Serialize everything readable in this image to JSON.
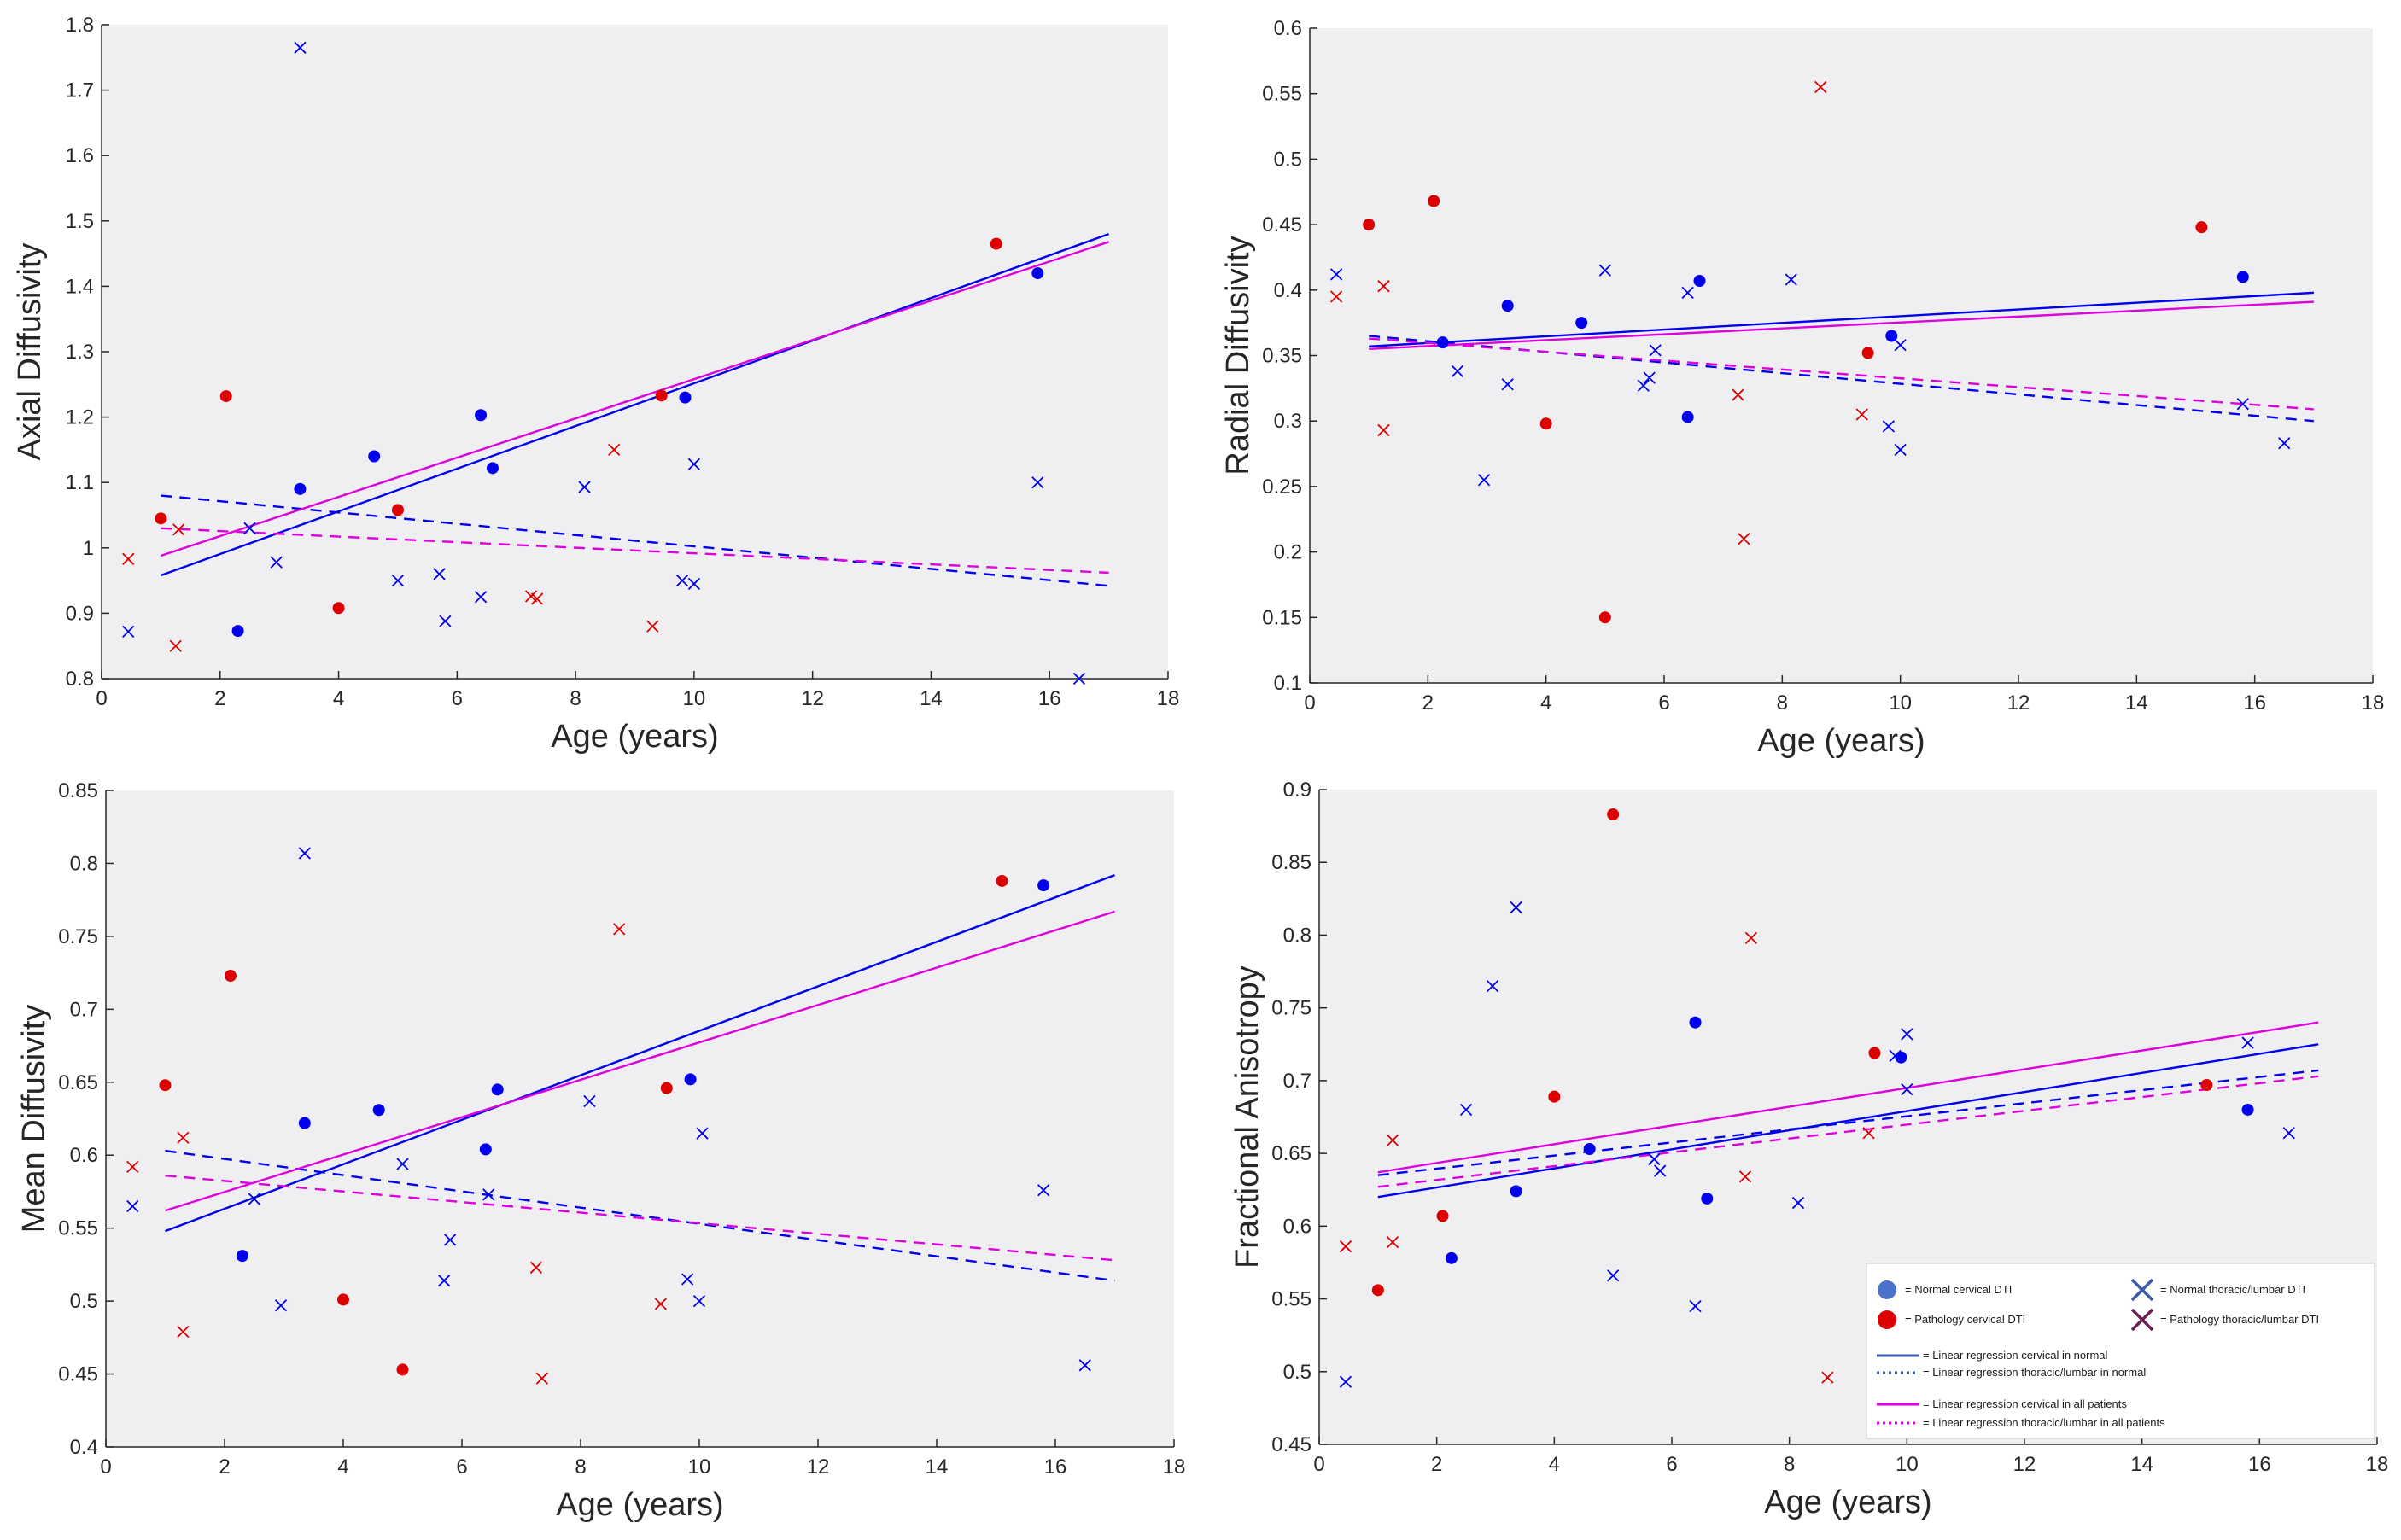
{
  "colors": {
    "normal": "#0000ee",
    "pathology": "#dd0000",
    "regression_all": "#dd00dd",
    "plot_bg": "#efeff2"
  },
  "chart_data": [
    {
      "type": "scatter",
      "ylabel": "Axial Diffusivity",
      "xlabel": "Age (years)",
      "xlim": [
        0,
        18
      ],
      "ylim": [
        0.8,
        1.8
      ],
      "xticks": [
        "0",
        "2",
        "4",
        "6",
        "8",
        "10",
        "12",
        "14",
        "16",
        "18"
      ],
      "yticks": [
        "0.8",
        "0.9",
        "1",
        "1.1",
        "1.2",
        "1.3",
        "1.4",
        "1.5",
        "1.6",
        "1.7",
        "1.8"
      ],
      "series": [
        {
          "name": "Normal cervical DTI",
          "marker": "dot",
          "color": "normal",
          "x": [
            2.3,
            3.35,
            4.6,
            6.4,
            6.6,
            9.85,
            15.8
          ],
          "y": [
            0.873,
            1.09,
            1.14,
            1.203,
            1.122,
            1.23,
            1.42
          ]
        },
        {
          "name": "Pathology cervical DTI",
          "marker": "dot",
          "color": "pathology",
          "x": [
            1.0,
            2.1,
            4.0,
            5.0,
            9.45,
            15.1
          ],
          "y": [
            1.045,
            1.232,
            0.908,
            1.058,
            1.233,
            1.465
          ]
        },
        {
          "name": "Normal thoracic/lumbar DTI",
          "marker": "x",
          "color": "normal",
          "x": [
            0.45,
            2.5,
            2.95,
            3.35,
            5.0,
            5.7,
            5.8,
            6.4,
            8.15,
            9.8,
            10.0,
            10.0,
            15.8,
            16.5
          ],
          "y": [
            0.872,
            1.03,
            0.978,
            1.765,
            0.95,
            0.96,
            0.888,
            0.925,
            1.093,
            0.95,
            0.945,
            1.128,
            1.1,
            0.8
          ]
        },
        {
          "name": "Pathology thoracic/lumbar DTI",
          "marker": "x",
          "color": "pathology",
          "x": [
            0.45,
            1.3,
            1.25,
            7.25,
            7.35,
            8.65,
            9.3
          ],
          "y": [
            0.983,
            1.028,
            0.85,
            0.926,
            0.922,
            1.15,
            0.88
          ]
        }
      ],
      "regressions": [
        {
          "name": "Linear regression cervical in normal",
          "color": "normal",
          "dash": false,
          "x": [
            1,
            17
          ],
          "y": [
            0.958,
            1.48
          ]
        },
        {
          "name": "Linear regression thoracic/lumbar in normal",
          "color": "normal",
          "dash": true,
          "x": [
            1,
            17
          ],
          "y": [
            1.08,
            0.942
          ]
        },
        {
          "name": "Linear regression cervical in all patients",
          "color": "regression_all",
          "dash": false,
          "x": [
            1,
            17
          ],
          "y": [
            0.988,
            1.468
          ]
        },
        {
          "name": "Linear regression thoracic/lumbar in all patients",
          "color": "regression_all",
          "dash": true,
          "x": [
            1,
            17
          ],
          "y": [
            1.03,
            0.962
          ]
        }
      ]
    },
    {
      "type": "scatter",
      "ylabel": "Radial Diffusivity",
      "xlabel": "Age (years)",
      "xlim": [
        0,
        18
      ],
      "ylim": [
        0.1,
        0.6
      ],
      "xticks": [
        "0",
        "2",
        "4",
        "6",
        "8",
        "10",
        "12",
        "14",
        "16",
        "18"
      ],
      "yticks": [
        "0.1",
        "0.15",
        "0.2",
        "0.25",
        "0.3",
        "0.35",
        "0.4",
        "0.45",
        "0.5",
        "0.55",
        "0.6"
      ],
      "series": [
        {
          "name": "Normal cervical DTI",
          "marker": "dot",
          "color": "normal",
          "x": [
            2.25,
            3.35,
            4.6,
            6.4,
            6.6,
            9.85,
            15.8
          ],
          "y": [
            0.36,
            0.388,
            0.375,
            0.303,
            0.407,
            0.365,
            0.41
          ]
        },
        {
          "name": "Pathology cervical DTI",
          "marker": "dot",
          "color": "pathology",
          "x": [
            1.0,
            2.1,
            4.0,
            5.0,
            9.45,
            15.1
          ],
          "y": [
            0.45,
            0.468,
            0.298,
            0.15,
            0.352,
            0.448
          ]
        },
        {
          "name": "Normal thoracic/lumbar DTI",
          "marker": "x",
          "color": "normal",
          "x": [
            0.45,
            2.5,
            2.95,
            3.35,
            5.0,
            5.65,
            5.75,
            5.85,
            6.4,
            8.15,
            9.8,
            10.0,
            10.0,
            15.8,
            16.5
          ],
          "y": [
            0.412,
            0.338,
            0.255,
            0.328,
            0.415,
            0.327,
            0.333,
            0.354,
            0.398,
            0.408,
            0.296,
            0.358,
            0.278,
            0.313,
            0.283
          ]
        },
        {
          "name": "Pathology thoracic/lumbar DTI",
          "marker": "x",
          "color": "pathology",
          "x": [
            0.45,
            1.25,
            1.25,
            7.25,
            7.35,
            8.65,
            9.35
          ],
          "y": [
            0.395,
            0.403,
            0.293,
            0.32,
            0.21,
            0.555,
            0.305
          ]
        }
      ],
      "regressions": [
        {
          "name": "Linear regression cervical in normal",
          "color": "normal",
          "dash": false,
          "x": [
            1,
            17
          ],
          "y": [
            0.357,
            0.398
          ]
        },
        {
          "name": "Linear regression thoracic/lumbar in normal",
          "color": "normal",
          "dash": true,
          "x": [
            1,
            17
          ],
          "y": [
            0.365,
            0.3
          ]
        },
        {
          "name": "Linear regression cervical in all patients",
          "color": "regression_all",
          "dash": false,
          "x": [
            1,
            17
          ],
          "y": [
            0.355,
            0.391
          ]
        },
        {
          "name": "Linear regression thoracic/lumbar in all patients",
          "color": "regression_all",
          "dash": true,
          "x": [
            1,
            17
          ],
          "y": [
            0.363,
            0.309
          ]
        }
      ]
    },
    {
      "type": "scatter",
      "ylabel": "Mean Diffusivity",
      "xlabel": "Age (years)",
      "xlim": [
        0,
        18
      ],
      "ylim": [
        0.4,
        0.85
      ],
      "xticks": [
        "0",
        "2",
        "4",
        "6",
        "8",
        "10",
        "12",
        "14",
        "16",
        "18"
      ],
      "yticks": [
        "0.4",
        "0.45",
        "0.5",
        "0.55",
        "0.6",
        "0.65",
        "0.7",
        "0.75",
        "0.8",
        "0.85"
      ],
      "series": [
        {
          "name": "Normal cervical DTI",
          "marker": "dot",
          "color": "normal",
          "x": [
            2.3,
            3.35,
            4.6,
            6.4,
            6.6,
            9.85,
            15.8
          ],
          "y": [
            0.531,
            0.622,
            0.631,
            0.604,
            0.645,
            0.652,
            0.785
          ]
        },
        {
          "name": "Pathology cervical DTI",
          "marker": "dot",
          "color": "pathology",
          "x": [
            1.0,
            2.1,
            4.0,
            5.0,
            9.45,
            15.1
          ],
          "y": [
            0.648,
            0.723,
            0.501,
            0.453,
            0.646,
            0.788
          ]
        },
        {
          "name": "Normal thoracic/lumbar DTI",
          "marker": "x",
          "color": "normal",
          "x": [
            0.45,
            2.5,
            2.95,
            3.35,
            5.0,
            5.7,
            5.8,
            6.45,
            8.15,
            9.8,
            10.0,
            10.05,
            15.8,
            16.5
          ],
          "y": [
            0.565,
            0.57,
            0.497,
            0.807,
            0.594,
            0.514,
            0.542,
            0.573,
            0.637,
            0.515,
            0.5,
            0.615,
            0.576,
            0.456
          ]
        },
        {
          "name": "Pathology thoracic/lumbar DTI",
          "marker": "x",
          "color": "pathology",
          "x": [
            0.45,
            1.3,
            1.3,
            7.25,
            7.35,
            8.65,
            9.35
          ],
          "y": [
            0.592,
            0.612,
            0.479,
            0.523,
            0.447,
            0.755,
            0.498
          ]
        }
      ],
      "regressions": [
        {
          "name": "Linear regression cervical in normal",
          "color": "normal",
          "dash": false,
          "x": [
            1,
            17
          ],
          "y": [
            0.548,
            0.792
          ]
        },
        {
          "name": "Linear regression thoracic/lumbar in normal",
          "color": "normal",
          "dash": true,
          "x": [
            1,
            17
          ],
          "y": [
            0.603,
            0.514
          ]
        },
        {
          "name": "Linear regression cervical in all patients",
          "color": "regression_all",
          "dash": false,
          "x": [
            1,
            17
          ],
          "y": [
            0.562,
            0.767
          ]
        },
        {
          "name": "Linear regression thoracic/lumbar in all patients",
          "color": "regression_all",
          "dash": true,
          "x": [
            1,
            17
          ],
          "y": [
            0.586,
            0.528
          ]
        }
      ]
    },
    {
      "type": "scatter",
      "ylabel": "Fractional Anisotropy",
      "xlabel": "Age (years)",
      "xlim": [
        0,
        18
      ],
      "ylim": [
        0.45,
        0.9
      ],
      "xticks": [
        "0",
        "2",
        "4",
        "6",
        "8",
        "10",
        "12",
        "14",
        "16",
        "18"
      ],
      "yticks": [
        "0.45",
        "0.5",
        "0.55",
        "0.6",
        "0.65",
        "0.7",
        "0.75",
        "0.8",
        "0.85",
        "0.9"
      ],
      "series": [
        {
          "name": "Normal cervical DTI",
          "marker": "dot",
          "color": "normal",
          "x": [
            2.25,
            3.35,
            4.6,
            6.4,
            6.6,
            9.9,
            15.8
          ],
          "y": [
            0.578,
            0.624,
            0.653,
            0.74,
            0.619,
            0.716,
            0.68
          ]
        },
        {
          "name": "Pathology cervical DTI",
          "marker": "dot",
          "color": "pathology",
          "x": [
            1.0,
            2.1,
            4.0,
            5.0,
            9.45,
            15.1
          ],
          "y": [
            0.556,
            0.607,
            0.689,
            0.883,
            0.719,
            0.697
          ]
        },
        {
          "name": "Normal thoracic/lumbar DTI",
          "marker": "x",
          "color": "normal",
          "x": [
            0.45,
            2.5,
            2.95,
            3.35,
            5.0,
            5.7,
            5.8,
            6.4,
            8.15,
            9.8,
            10.0,
            10.0,
            15.8,
            16.5
          ],
          "y": [
            0.493,
            0.68,
            0.765,
            0.819,
            0.566,
            0.646,
            0.638,
            0.545,
            0.616,
            0.717,
            0.732,
            0.694,
            0.726,
            0.664
          ]
        },
        {
          "name": "Pathology thoracic/lumbar DTI",
          "marker": "x",
          "color": "pathology",
          "x": [
            0.45,
            1.25,
            1.25,
            7.25,
            7.35,
            8.65,
            9.35
          ],
          "y": [
            0.586,
            0.659,
            0.589,
            0.634,
            0.798,
            0.496,
            0.664
          ]
        }
      ],
      "regressions": [
        {
          "name": "Linear regression cervical in normal",
          "color": "normal",
          "dash": false,
          "x": [
            1,
            17
          ],
          "y": [
            0.62,
            0.725
          ]
        },
        {
          "name": "Linear regression thoracic/lumbar in normal",
          "color": "normal",
          "dash": true,
          "x": [
            1,
            17
          ],
          "y": [
            0.635,
            0.707
          ]
        },
        {
          "name": "Linear regression cervical in all patients",
          "color": "regression_all",
          "dash": false,
          "x": [
            1,
            17
          ],
          "y": [
            0.637,
            0.74
          ]
        },
        {
          "name": "Linear regression thoracic/lumbar in all patients",
          "color": "regression_all",
          "dash": true,
          "x": [
            1,
            17
          ],
          "y": [
            0.627,
            0.703
          ]
        }
      ]
    }
  ],
  "legend": {
    "location": "bottom-right of Fractional Anisotropy panel",
    "items": [
      {
        "label": "= Normal cervical DTI",
        "kind": "dot",
        "color": "#4a72c8"
      },
      {
        "label": "= Normal thoracic/lumbar DTI",
        "kind": "x",
        "color": "#3b5ca8"
      },
      {
        "label": "= Pathology cervical DTI",
        "kind": "dot",
        "color": "#dd0000"
      },
      {
        "label": "= Pathology thoracic/lumbar DTI",
        "kind": "x",
        "color": "#6a2055"
      },
      {
        "label": "= Linear regression cervical in normal",
        "kind": "solid",
        "color": "#3b5ca8"
      },
      {
        "label": "= Linear regression thoracic/lumbar in normal",
        "kind": "dotted",
        "color": "#3b5ca8"
      },
      {
        "label": "= Linear regression cervical in all patients",
        "kind": "solid",
        "color": "#dd00dd"
      },
      {
        "label": "= Linear regression thoracic/lumbar in all patients",
        "kind": "dotted",
        "color": "#dd00dd"
      }
    ]
  }
}
